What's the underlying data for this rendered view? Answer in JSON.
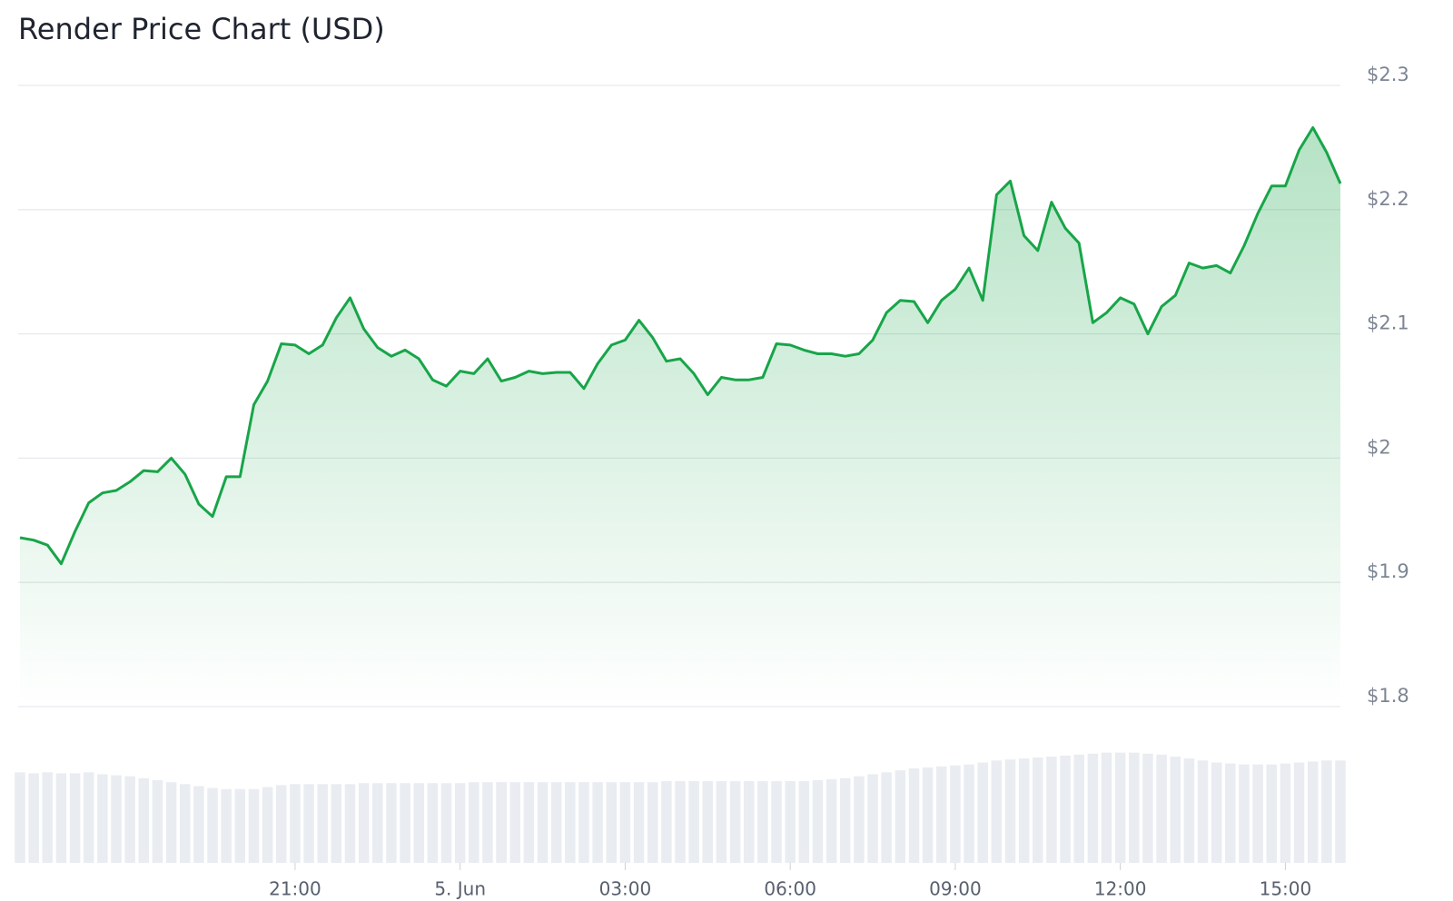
{
  "chart_data": {
    "type": "line",
    "title": "Render Price Chart (USD)",
    "categories": [
      null,
      null,
      null,
      null,
      null,
      null,
      null,
      null,
      null,
      null,
      null,
      null,
      null,
      null,
      null,
      null,
      null,
      null,
      null,
      null,
      "21:00",
      null,
      null,
      null,
      null,
      null,
      null,
      null,
      null,
      null,
      null,
      null,
      "5. Jun",
      null,
      null,
      null,
      null,
      null,
      null,
      null,
      null,
      null,
      null,
      null,
      "03:00",
      null,
      null,
      null,
      null,
      null,
      null,
      null,
      null,
      null,
      null,
      null,
      "06:00",
      null,
      null,
      null,
      null,
      null,
      null,
      null,
      null,
      null,
      null,
      null,
      "09:00",
      null,
      null,
      null,
      null,
      null,
      null,
      null,
      null,
      null,
      null,
      null,
      "12:00",
      null,
      null,
      null,
      null,
      null,
      null,
      null,
      null,
      null,
      null,
      null,
      "15:00",
      null,
      null,
      null,
      null
    ],
    "series": [
      {
        "name": "Price",
        "color": "#18a549",
        "values": [
          1.936,
          1.934,
          1.93,
          1.915,
          1.941,
          1.964,
          1.972,
          1.974,
          1.981,
          1.99,
          1.989,
          2.0,
          1.987,
          1.963,
          1.953,
          1.985,
          1.985,
          2.043,
          2.062,
          2.092,
          2.091,
          2.084,
          2.091,
          2.113,
          2.129,
          2.104,
          2.089,
          2.082,
          2.087,
          2.08,
          2.063,
          2.058,
          2.07,
          2.068,
          2.08,
          2.062,
          2.065,
          2.07,
          2.068,
          2.069,
          2.069,
          2.056,
          2.076,
          2.091,
          2.095,
          2.111,
          2.097,
          2.078,
          2.08,
          2.068,
          2.051,
          2.065,
          2.063,
          2.063,
          2.065,
          2.092,
          2.091,
          2.087,
          2.084,
          2.084,
          2.082,
          2.084,
          2.095,
          2.117,
          2.127,
          2.126,
          2.109,
          2.127,
          2.136,
          2.153,
          2.127,
          2.212,
          2.223,
          2.179,
          2.167,
          2.206,
          2.185,
          2.173,
          2.109,
          2.117,
          2.129,
          2.124,
          2.1,
          2.122,
          2.131,
          2.157,
          2.153,
          2.155,
          2.149,
          2.171,
          2.197,
          2.219,
          2.219,
          2.248,
          2.266,
          2.246,
          2.221
        ]
      }
    ],
    "volume": [
      92,
      91,
      92,
      91,
      91,
      92,
      90,
      89,
      88,
      86,
      84,
      82,
      80,
      78,
      76,
      75,
      75,
      75,
      77,
      79,
      80,
      80,
      80,
      80,
      80,
      81,
      81,
      81,
      81,
      81,
      81,
      81,
      81,
      82,
      82,
      82,
      82,
      82,
      82,
      82,
      82,
      82,
      82,
      82,
      82,
      82,
      82,
      83,
      83,
      83,
      83,
      83,
      83,
      83,
      83,
      83,
      83,
      83,
      84,
      85,
      86,
      88,
      90,
      92,
      94,
      96,
      97,
      98,
      99,
      100,
      102,
      104,
      105,
      106,
      107,
      108,
      109,
      110,
      111,
      112,
      112,
      112,
      111,
      110,
      108,
      106,
      104,
      102,
      101,
      100,
      100,
      100,
      101,
      102,
      103,
      104,
      104
    ],
    "volume_ylim": [
      0,
      120
    ],
    "ylim": [
      1.8,
      2.3
    ],
    "yticks": [
      {
        "value": 1.8,
        "label": "$1.8"
      },
      {
        "value": 1.9,
        "label": "$1.9"
      },
      {
        "value": 2.0,
        "label": "$2"
      },
      {
        "value": 2.1,
        "label": "$2.1"
      },
      {
        "value": 2.2,
        "label": "$2.2"
      },
      {
        "value": 2.3,
        "label": "$2.3"
      }
    ],
    "grid": true
  }
}
